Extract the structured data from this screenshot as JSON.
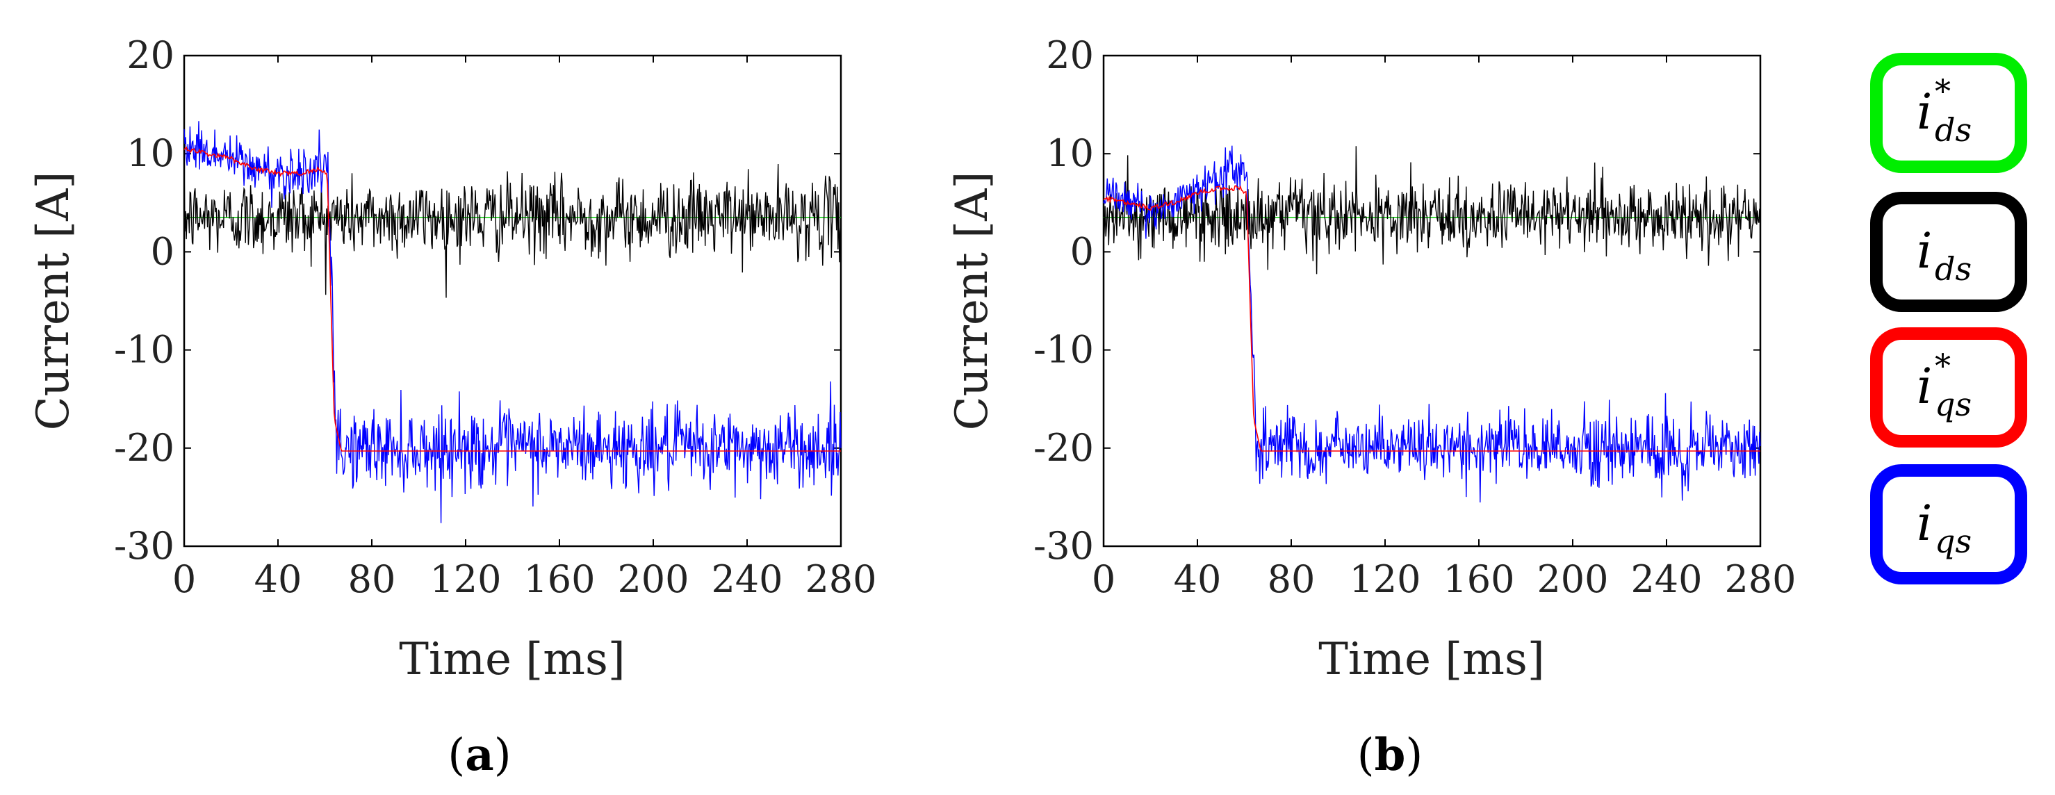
{
  "chart_data": [
    {
      "type": "line",
      "panel_label": "a",
      "xlabel": "Time [ms]",
      "ylabel": "Current [A]",
      "xlim": [
        0,
        280
      ],
      "ylim": [
        -30,
        20
      ],
      "xticks": [
        0,
        40,
        80,
        120,
        160,
        200,
        240,
        280
      ],
      "yticks": [
        20,
        10,
        0,
        -10,
        -20,
        -30
      ],
      "step_time": 61,
      "series": [
        {
          "name": "i*ds",
          "color": "#00cc00",
          "kind": "constant",
          "values": [
            [
              0,
              3.5
            ],
            [
              280,
              3.5
            ]
          ]
        },
        {
          "name": "ids",
          "color": "#000000",
          "kind": "noisy",
          "mean": 3.5,
          "noise": 2.6
        },
        {
          "name": "i*qs",
          "color": "#ff0000",
          "kind": "reference",
          "values": [
            [
              0,
              10.5
            ],
            [
              20,
              9.5
            ],
            [
              30,
              8.5
            ],
            [
              40,
              8.0
            ],
            [
              50,
              8.0
            ],
            [
              58,
              8.5
            ],
            [
              61,
              8.0
            ],
            [
              64,
              -17.0
            ],
            [
              67,
              -20.3
            ],
            [
              280,
              -20.3
            ]
          ]
        },
        {
          "name": "iqs",
          "color": "#0000ff",
          "kind": "noisy_step",
          "pre_mean": [
            [
              0,
              11.0
            ],
            [
              20,
              9.5
            ],
            [
              30,
              8.5
            ],
            [
              40,
              8.0
            ],
            [
              58,
              8.5
            ]
          ],
          "post_mean": -20.0,
          "noise": 2.2
        }
      ]
    },
    {
      "type": "line",
      "panel_label": "b",
      "xlabel": "Time [ms]",
      "ylabel": "Current [A]",
      "xlim": [
        0,
        280
      ],
      "ylim": [
        -30,
        20
      ],
      "xticks": [
        0,
        40,
        80,
        120,
        160,
        200,
        240,
        280
      ],
      "yticks": [
        20,
        10,
        0,
        -10,
        -20,
        -30
      ],
      "step_time": 61,
      "series": [
        {
          "name": "i*ds",
          "color": "#00cc00",
          "kind": "constant",
          "values": [
            [
              0,
              3.5
            ],
            [
              280,
              3.5
            ]
          ]
        },
        {
          "name": "ids",
          "color": "#000000",
          "kind": "noisy",
          "mean": 3.5,
          "noise": 2.4
        },
        {
          "name": "i*qs",
          "color": "#ff0000",
          "kind": "reference",
          "values": [
            [
              0,
              5.5
            ],
            [
              10,
              5.0
            ],
            [
              20,
              4.5
            ],
            [
              30,
              5.0
            ],
            [
              40,
              6.0
            ],
            [
              50,
              6.5
            ],
            [
              58,
              6.5
            ],
            [
              61,
              6.0
            ],
            [
              64,
              -17.0
            ],
            [
              67,
              -20.3
            ],
            [
              280,
              -20.3
            ]
          ]
        },
        {
          "name": "iqs",
          "color": "#0000ff",
          "kind": "noisy_step",
          "pre_mean": [
            [
              0,
              6.0
            ],
            [
              15,
              5.0
            ],
            [
              25,
              4.0
            ],
            [
              35,
              5.5
            ],
            [
              45,
              7.0
            ],
            [
              55,
              8.5
            ],
            [
              60,
              8.0
            ]
          ],
          "post_mean": -20.0,
          "noise": 2.0
        }
      ]
    }
  ],
  "legend": [
    {
      "base": "i",
      "sub": "ds",
      "sup": "*",
      "color": "#00ee00"
    },
    {
      "base": "i",
      "sub": "ds",
      "sup": "",
      "color": "#000000"
    },
    {
      "base": "i",
      "sub": "qs",
      "sup": "*",
      "color": "#ff0000"
    },
    {
      "base": "i",
      "sub": "qs",
      "sup": "",
      "color": "#0000ff"
    }
  ]
}
